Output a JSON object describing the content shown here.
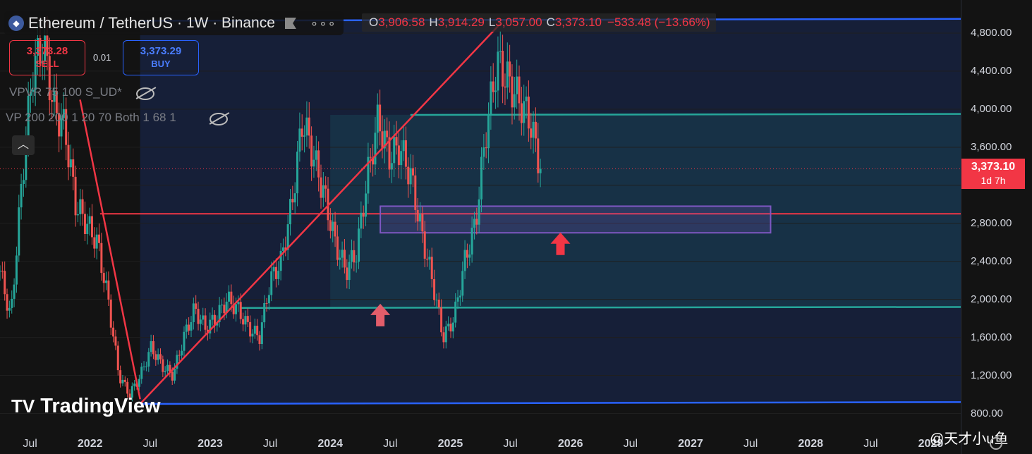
{
  "header": {
    "symbol": "Ethereum / TetherUS",
    "interval": "· 1W · Binance",
    "more": "∘∘∘",
    "ohlc": {
      "o_label": "O",
      "o": "3,906.58",
      "h_label": "H",
      "h": "3,914.29",
      "l_label": "L",
      "l": "3,057.00",
      "c_label": "C",
      "c": "3,373.10",
      "change": "−533.48 (−13.66%)"
    }
  },
  "trade": {
    "sell_price": "3,373.28",
    "sell_label": "SELL",
    "spread": "0.01",
    "buy_price": "3,373.29",
    "buy_label": "BUY"
  },
  "indicators": [
    "VPVR 75 100 S_UD*",
    "VP 200 200 1 20 70 Both 1 68 1"
  ],
  "collapse_icon": "chevron-up-icon",
  "brand": "TradingView",
  "last_price": {
    "value": "3,373.10",
    "countdown": "1d 7h"
  },
  "watermark": "@天才小u鱼",
  "colors": {
    "up": "#26a69a",
    "down": "#ef5350",
    "trendline": "#f23645",
    "channel_edge": "#2962ff",
    "channel_mid": "#26a69a",
    "zone": "#7e57c2"
  },
  "chart_data": {
    "type": "candlestick",
    "yaxis": {
      "ticks": [
        800,
        1200,
        1600,
        2000,
        2400,
        2800,
        3200,
        3600,
        4000,
        4400,
        4800
      ],
      "tick_labels": [
        "800.00",
        "1,200.00",
        "1,600.00",
        "2,000.00",
        "2,400.00",
        "2,800.00",
        "",
        "3,600.00",
        "4,000.00",
        "4,400.00",
        "4,800.00"
      ],
      "ylim": [
        700,
        5000
      ]
    },
    "xaxis": {
      "tick_labels": [
        "Jul",
        "2022",
        "Jul",
        "2023",
        "Jul",
        "2024",
        "Jul",
        "2025",
        "Jul",
        "2026",
        "Jul",
        "2027",
        "Jul",
        "2028",
        "Jul",
        "2029"
      ],
      "tick_dates": [
        "2021-07",
        "2022-01",
        "2022-07",
        "2023-01",
        "2023-07",
        "2024-01",
        "2024-07",
        "2025-01",
        "2025-07",
        "2026-01",
        "2026-07",
        "2027-01",
        "2027-07",
        "2028-01",
        "2028-07",
        "2029-01"
      ],
      "range": [
        "2021-04",
        "2029-04"
      ]
    },
    "series": [
      {
        "values_close": [
          2300,
          1800,
          3200,
          4400,
          4700,
          4000,
          3800,
          3000,
          2800,
          2600,
          2000,
          1200,
          1000,
          1200,
          1500,
          1300,
          1200,
          1600,
          1900,
          1700,
          1800,
          2000,
          1900,
          1700,
          1600,
          2200,
          2400,
          3000,
          3900,
          3500,
          3100,
          2600,
          2300,
          2500,
          3300,
          3900,
          3500,
          3600,
          3300,
          2700,
          2200,
          1600,
          1800,
          2400,
          2800,
          3800,
          4500,
          4300,
          4100,
          3900,
          3373.1
        ]
      }
    ],
    "last_price": 3373.1,
    "annotations": {
      "channel_lines": [
        {
          "name": "upper",
          "y_start": 4930,
          "y_end": 4950,
          "color": "#2962ff"
        },
        {
          "name": "upper_mid",
          "y_start": 3940,
          "y_end": 3950,
          "color": "#26a69a"
        },
        {
          "name": "lower_mid",
          "y_start": 1910,
          "y_end": 1920,
          "color": "#26a69a"
        },
        {
          "name": "lower",
          "y_start": 900,
          "y_end": 920,
          "color": "#2962ff"
        }
      ],
      "horizontal_line": {
        "y": 2900,
        "color": "#f23645"
      },
      "trendline_up": {
        "from": [
          "2022-06",
          900
        ],
        "to": [
          "2025-06",
          4900
        ]
      },
      "trendline_down": {
        "from": [
          "2021-12",
          4100
        ],
        "to": [
          "2022-06",
          950
        ]
      },
      "zone": {
        "y_low": 2700,
        "y_high": 2980,
        "from": "2024-06",
        "to": "2027-09"
      },
      "arrows": [
        {
          "date": "2024-06",
          "y": 1850
        },
        {
          "date": "2025-12",
          "y": 2600
        }
      ]
    }
  }
}
